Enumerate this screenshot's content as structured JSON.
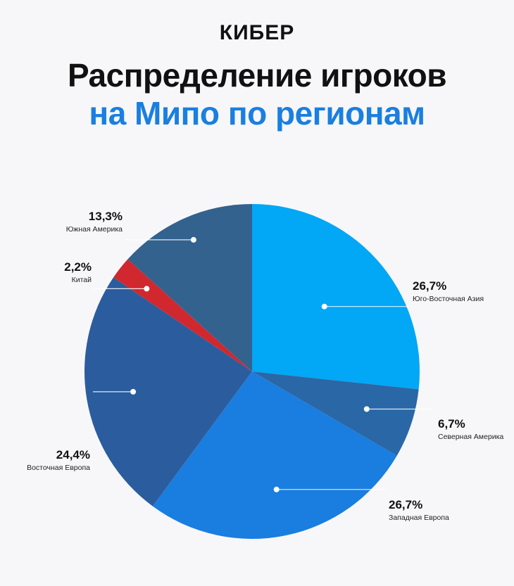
{
  "brand": "КИБЕР",
  "title_line1": "Распределение игроков",
  "title_line2": "на Мипо по регионам",
  "chart_data": {
    "type": "pie",
    "slices": [
      {
        "name": "Юго-Восточная Азия",
        "value": 26.7,
        "label": "26,7%",
        "color": "#02a7f6"
      },
      {
        "name": "Северная Америка",
        "value": 6.7,
        "label": "6,7%",
        "color": "#2a67a6"
      },
      {
        "name": "Западная Европа",
        "value": 26.7,
        "label": "26,7%",
        "color": "#1a7de0"
      },
      {
        "name": "Восточная Европа",
        "value": 24.4,
        "label": "24,4%",
        "color": "#2b5d9e"
      },
      {
        "name": "Китай",
        "value": 2.2,
        "label": "2,2%",
        "color": "#d0282e"
      },
      {
        "name": "Южная Америка",
        "value": 13.3,
        "label": "13,3%",
        "color": "#33628e"
      }
    ]
  }
}
